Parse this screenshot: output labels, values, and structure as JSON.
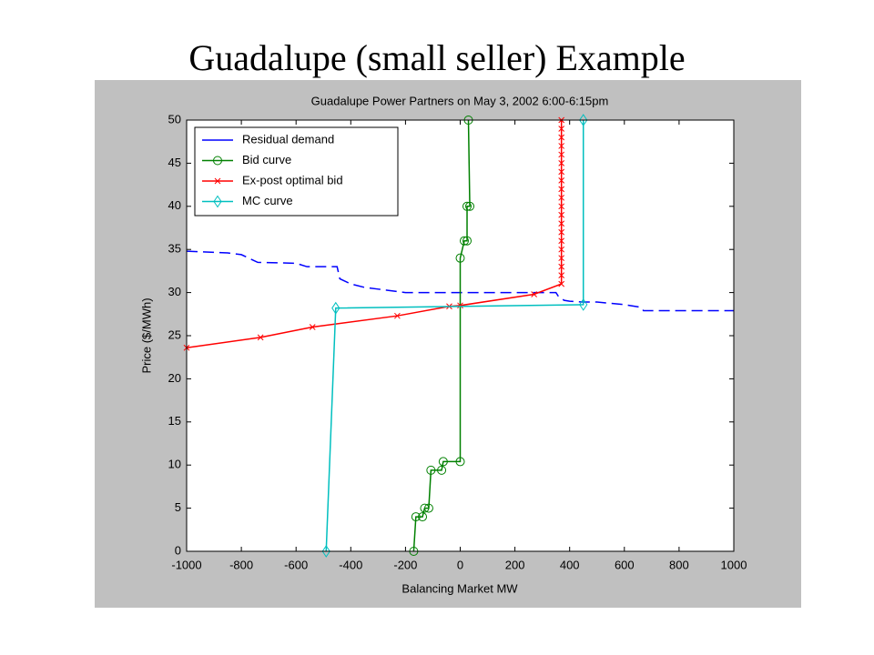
{
  "slide_title": "Guadalupe (small seller) Example",
  "chart_data": {
    "type": "line",
    "title": "Guadalupe Power Partners on May 3, 2002  6:00-6:15pm",
    "x_label": "Balancing Market MW",
    "y_label": "Price ($/MWh)",
    "xlim": [
      -1000,
      1000
    ],
    "xticks": [
      -1000,
      -800,
      -600,
      -400,
      -200,
      0,
      200,
      400,
      600,
      800,
      1000
    ],
    "ylim": [
      0,
      50
    ],
    "yticks": [
      0,
      5,
      10,
      15,
      20,
      25,
      30,
      35,
      40,
      45,
      50
    ],
    "legend": "upper left",
    "series": [
      {
        "name": "Residual demand",
        "color": "#0000ff",
        "style": "dashed",
        "marker": "none",
        "x": [
          -1000,
          -850,
          -800,
          -740,
          -600,
          -560,
          -450,
          -440,
          -400,
          -350,
          -300,
          -200,
          350,
          360,
          380,
          400,
          450,
          500,
          600,
          660,
          670,
          1000
        ],
        "values": [
          34.8,
          34.6,
          34.4,
          33.5,
          33.4,
          33,
          33,
          31.6,
          31,
          30.6,
          30.4,
          30,
          30,
          29.5,
          29.1,
          29,
          28.9,
          28.9,
          28.6,
          28.3,
          27.9,
          27.9
        ]
      },
      {
        "name": "Bid curve",
        "color": "#008000",
        "style": "solid",
        "marker": "circle",
        "x": [
          -170,
          -162,
          -138,
          -130,
          -115,
          -107,
          -68,
          -62,
          0,
          0,
          15,
          25,
          25,
          35,
          30
        ],
        "values": [
          0,
          4,
          4,
          5,
          5,
          9.4,
          9.4,
          10.4,
          10.4,
          34,
          36,
          36,
          40,
          40,
          50
        ]
      },
      {
        "name": "Ex-post optimal bid",
        "color": "#ff0000",
        "style": "solid",
        "marker": "x",
        "x": [
          -1000,
          -730,
          -540,
          -230,
          -40,
          0,
          270,
          370,
          370,
          370,
          370,
          370,
          370,
          370,
          370,
          370,
          370,
          370,
          370,
          370,
          370,
          370,
          370,
          370,
          370,
          370,
          370
        ],
        "values": [
          23.6,
          24.8,
          26,
          27.3,
          28.4,
          28.5,
          29.8,
          31,
          32,
          33,
          34,
          35,
          36,
          37,
          38,
          39,
          40,
          41,
          42,
          43,
          44,
          45,
          46,
          47,
          48,
          49,
          50
        ]
      },
      {
        "name": "MC curve",
        "color": "#00bfbf",
        "style": "solid",
        "marker": "diamond",
        "x": [
          -490,
          -455,
          450,
          450
        ],
        "values": [
          0,
          28.2,
          28.6,
          50
        ]
      }
    ]
  }
}
